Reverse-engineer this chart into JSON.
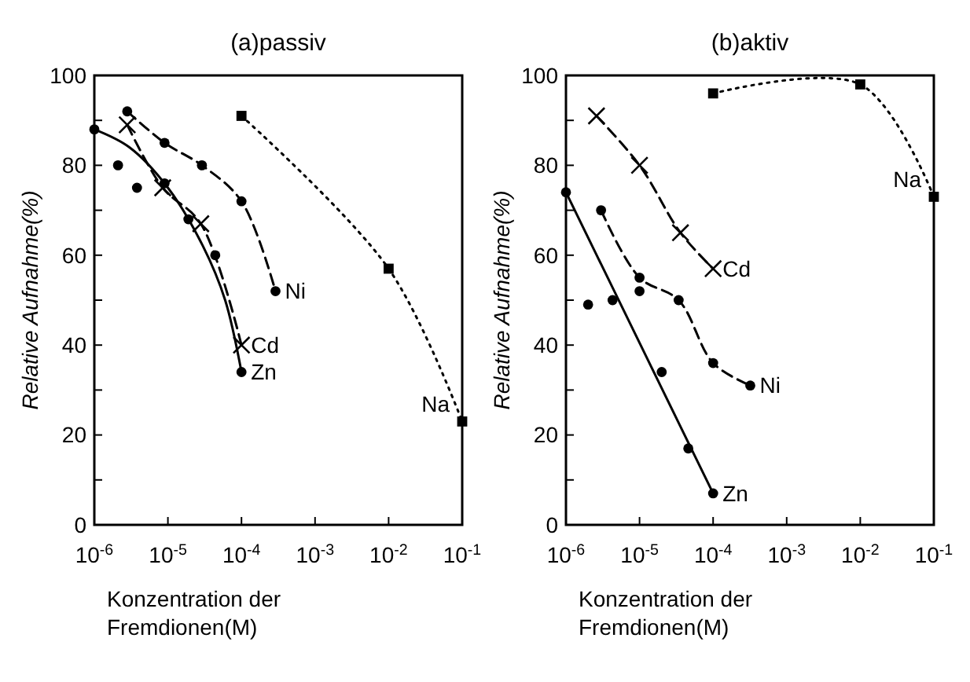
{
  "chart_data": [
    {
      "type": "line",
      "title": "(a)passiv",
      "xlabel": "Konzentration der Fremdionen(M)",
      "ylabel": "Relative Aufnahme(%)",
      "log": "x",
      "grid": false,
      "xlim": [
        1e-06,
        0.1
      ],
      "xticks": [
        {
          "value": 1e-06,
          "label": "10$^{-6}$"
        },
        {
          "value": 1e-05,
          "label": "10$^{-5}$"
        },
        {
          "value": 0.0001,
          "label": "10$^{-4}$"
        },
        {
          "value": 0.001,
          "label": "10$^{-3}$"
        },
        {
          "value": 0.01,
          "label": "10$^{-2}$"
        },
        {
          "value": 0.1,
          "label": "10$^{-1}$"
        }
      ],
      "ylim": [
        0,
        100
      ],
      "yticks": [
        0,
        {
          "value": 10,
          "label": null
        },
        20,
        {
          "value": 30,
          "label": null
        },
        40,
        {
          "value": 50,
          "label": null
        },
        60,
        {
          "value": 70,
          "label": null
        },
        80,
        {
          "value": 90,
          "label": null
        },
        100
      ],
      "series": [
        {
          "name": "Zn",
          "color": "#000000",
          "x": [
            1e-06,
            3e-06,
            1e-05,
            3e-05,
            6e-05,
            0.0001
          ],
          "values": [
            88,
            84,
            75,
            62,
            50,
            34
          ],
          "marker": "none",
          "line_style": "solid"
        },
        {
          "type": "scatter",
          "color": "#000000",
          "x": [
            1e-06,
            2.1e-06,
            3.8e-06,
            9e-06,
            1.9e-05,
            4.4e-05,
            0.0001
          ],
          "values": [
            88,
            80,
            75,
            76,
            68,
            60,
            34
          ],
          "marker": "circle"
        },
        {
          "name": "Cd",
          "color": "#000000",
          "x": [
            2.8e-06,
            8.5e-06,
            2.8e-05,
            0.0001
          ],
          "values": [
            89,
            75,
            67,
            40
          ],
          "marker": "cross",
          "line_style": "dashed"
        },
        {
          "name": "Ni",
          "color": "#000000",
          "x": [
            2.8e-06,
            9e-06,
            2.9e-05,
            0.0001,
            0.00029
          ],
          "values": [
            92,
            85,
            80,
            72,
            52
          ],
          "marker": "circle",
          "line_style": "dashed"
        },
        {
          "name": "Na",
          "color": "#000000",
          "x": [
            0.0001,
            0.01,
            0.1
          ],
          "values": [
            91,
            57,
            23
          ],
          "marker": "square",
          "line_style": "dotted"
        }
      ]
    },
    {
      "type": "line",
      "title": "(b)aktiv",
      "xlabel": "Konzentration der Fremdionen(M)",
      "ylabel": "Relative Aufnahme(%)",
      "log": "x",
      "grid": false,
      "xlim": [
        1e-06,
        0.1
      ],
      "xticks": [
        {
          "value": 1e-06,
          "label": "10$^{-6}$"
        },
        {
          "value": 1e-05,
          "label": "10$^{-5}$"
        },
        {
          "value": 0.0001,
          "label": "10$^{-4}$"
        },
        {
          "value": 0.001,
          "label": "10$^{-3}$"
        },
        {
          "value": 0.01,
          "label": "10$^{-2}$"
        },
        {
          "value": 0.1,
          "label": "10$^{-1}$"
        }
      ],
      "ylim": [
        0,
        100
      ],
      "yticks": [
        0,
        {
          "value": 10,
          "label": null
        },
        20,
        {
          "value": 30,
          "label": null
        },
        40,
        {
          "value": 50,
          "label": null
        },
        60,
        {
          "value": 70,
          "label": null
        },
        80,
        {
          "value": 90,
          "label": null
        },
        100
      ],
      "series": [
        {
          "name": "Zn",
          "color": "#000000",
          "x": [
            1e-06,
            0.0001
          ],
          "values": [
            74,
            7
          ],
          "marker": "none",
          "line_style": "solid"
        },
        {
          "type": "scatter",
          "color": "#000000",
          "x": [
            1e-06,
            2e-06,
            4.3e-06,
            1e-05,
            2e-05,
            4.6e-05,
            0.0001
          ],
          "values": [
            74,
            49,
            50,
            52,
            34,
            17,
            7
          ],
          "marker": "circle"
        },
        {
          "name": "Cd",
          "color": "#000000",
          "x": [
            2.6e-06,
            1e-05,
            3.6e-05,
            0.0001
          ],
          "values": [
            91,
            80,
            65,
            57
          ],
          "marker": "cross",
          "line_style": "dashed"
        },
        {
          "name": "Ni",
          "color": "#000000",
          "x": [
            3e-06,
            1e-05,
            3.4e-05,
            0.0001,
            0.00032
          ],
          "values": [
            70,
            55,
            50,
            36,
            31
          ],
          "marker": "circle",
          "line_style": "dashed"
        },
        {
          "name": "Na",
          "color": "#000000",
          "x": [
            0.0001,
            0.01,
            0.1
          ],
          "values": [
            96,
            98,
            73
          ],
          "marker": "square",
          "line_style": "dotted"
        }
      ]
    }
  ]
}
